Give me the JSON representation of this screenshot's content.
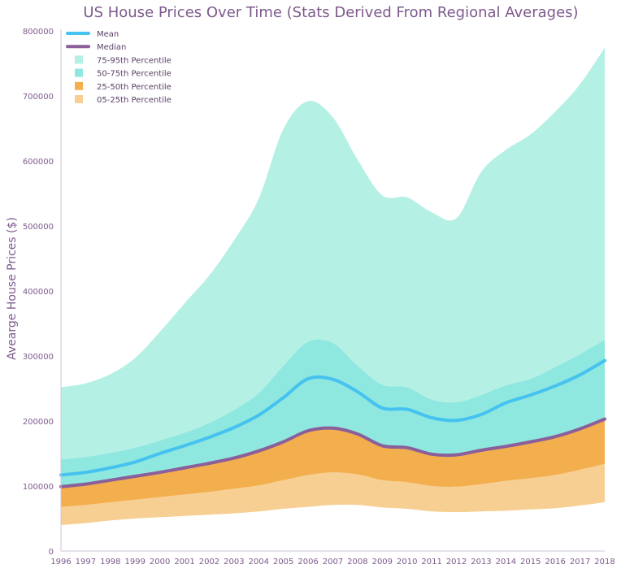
{
  "chart_data": {
    "type": "area",
    "title": "US House Prices Over Time (Stats Derived From Regional Averages)",
    "xlabel": "",
    "ylabel": "Avearge House Prices ($)",
    "x": [
      1996,
      1997,
      1998,
      1999,
      2000,
      2001,
      2002,
      2003,
      2004,
      2005,
      2006,
      2007,
      2008,
      2009,
      2010,
      2011,
      2012,
      2013,
      2014,
      2015,
      2016,
      2017,
      2018
    ],
    "xlim": [
      1996,
      2018
    ],
    "ylim": [
      0,
      800000
    ],
    "yticks": [
      0,
      100000,
      200000,
      300000,
      400000,
      500000,
      600000,
      700000,
      800000
    ],
    "grid": false,
    "legend_position": "top-left",
    "series": [
      {
        "name": "05-25th Percentile",
        "kind": "band",
        "color": "#f7cf92",
        "lower": [
          40000,
          43000,
          47000,
          50000,
          52000,
          54000,
          56000,
          58000,
          61000,
          65000,
          68000,
          71000,
          71000,
          67000,
          65000,
          61000,
          60000,
          61000,
          62000,
          64000,
          66000,
          70000,
          75000
        ],
        "upper": [
          68000,
          71000,
          75000,
          79000,
          83000,
          87000,
          91000,
          96000,
          101000,
          109000,
          117000,
          121000,
          118000,
          109000,
          106000,
          100000,
          99000,
          103000,
          108000,
          112000,
          117000,
          125000,
          134000
        ]
      },
      {
        "name": "25-50th Percentile",
        "kind": "band",
        "color": "#f3ae4e",
        "lower": [
          68000,
          71000,
          75000,
          79000,
          83000,
          87000,
          91000,
          96000,
          101000,
          109000,
          117000,
          121000,
          118000,
          109000,
          106000,
          100000,
          99000,
          103000,
          108000,
          112000,
          117000,
          125000,
          134000
        ],
        "upper": [
          99000,
          103000,
          109000,
          115000,
          121000,
          128000,
          135000,
          143000,
          154000,
          168000,
          185000,
          189000,
          180000,
          162000,
          159000,
          149000,
          148000,
          155000,
          161000,
          168000,
          176000,
          188000,
          203000
        ]
      },
      {
        "name": "50-75th Percentile",
        "kind": "band",
        "color": "#8fe8e0",
        "lower": [
          99000,
          103000,
          109000,
          115000,
          121000,
          128000,
          135000,
          143000,
          154000,
          168000,
          185000,
          189000,
          180000,
          162000,
          159000,
          149000,
          148000,
          155000,
          161000,
          168000,
          176000,
          188000,
          203000
        ],
        "upper": [
          141000,
          145000,
          151000,
          159000,
          170000,
          182000,
          197000,
          217000,
          243000,
          285000,
          322000,
          320000,
          285000,
          256000,
          252000,
          233000,
          229000,
          240000,
          255000,
          265000,
          283000,
          303000,
          325000
        ]
      },
      {
        "name": "75-95th Percentile",
        "kind": "band",
        "color": "#b5f0e5",
        "lower": [
          141000,
          145000,
          151000,
          159000,
          170000,
          182000,
          197000,
          217000,
          243000,
          285000,
          322000,
          320000,
          285000,
          256000,
          252000,
          233000,
          229000,
          240000,
          255000,
          265000,
          283000,
          303000,
          325000
        ],
        "upper": [
          252000,
          258000,
          272000,
          297000,
          337000,
          381000,
          424000,
          478000,
          542000,
          649000,
          692000,
          667000,
          602000,
          547000,
          544000,
          521000,
          512000,
          583000,
          617000,
          641000,
          676000,
          718000,
          774000
        ]
      },
      {
        "name": "Mean",
        "kind": "line",
        "color": "#45c2ef",
        "values": [
          117000,
          121000,
          128000,
          137000,
          150000,
          162000,
          175000,
          190000,
          209000,
          236000,
          265000,
          264000,
          245000,
          220000,
          218000,
          205000,
          201000,
          210000,
          228000,
          240000,
          254000,
          271000,
          293000
        ]
      },
      {
        "name": "Median",
        "kind": "line",
        "color": "#8a5f9a",
        "values": [
          99000,
          103000,
          109000,
          115000,
          121000,
          128000,
          135000,
          143000,
          154000,
          168000,
          185000,
          189000,
          180000,
          162000,
          159000,
          149000,
          148000,
          155000,
          161000,
          168000,
          176000,
          188000,
          203000
        ]
      }
    ],
    "legend": [
      "Mean",
      "Median",
      "75-95th Percentile",
      "50-75th Percentile",
      "25-50th Percentile",
      "05-25th Percentile"
    ]
  }
}
